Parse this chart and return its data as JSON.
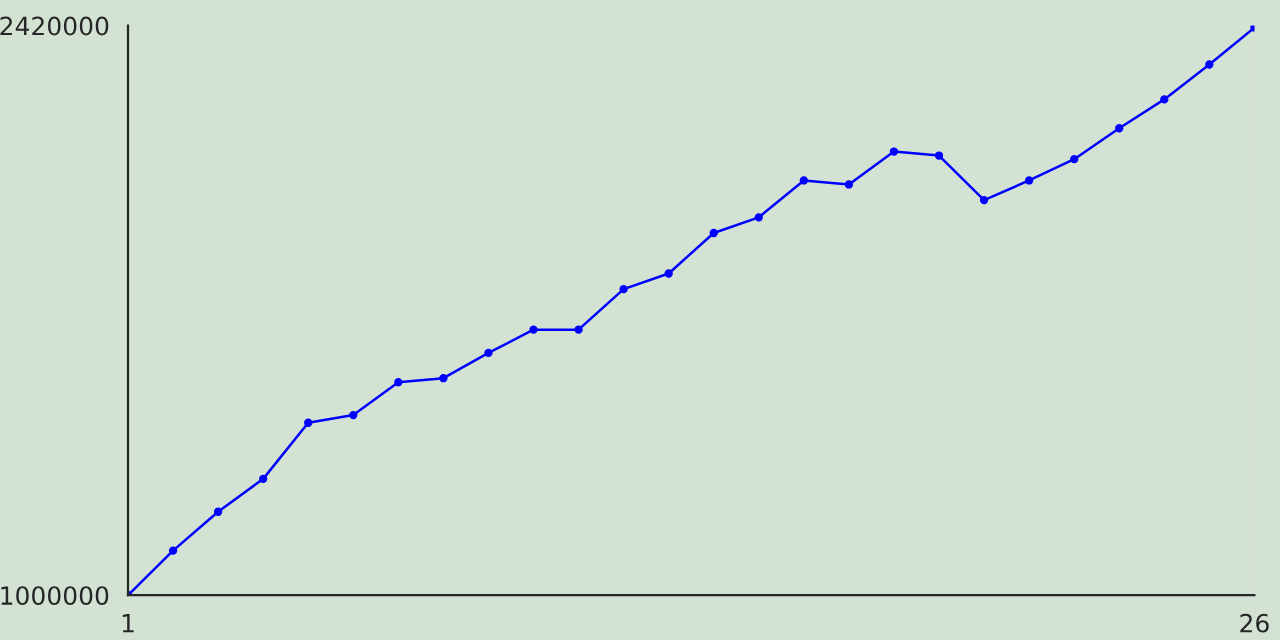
{
  "chart_data": {
    "type": "line",
    "x": [
      1,
      2,
      3,
      4,
      5,
      6,
      7,
      8,
      9,
      10,
      11,
      12,
      13,
      14,
      15,
      16,
      17,
      18,
      19,
      20,
      21,
      22,
      23,
      24,
      25,
      26
    ],
    "series": [
      {
        "color": "#0000ff",
        "values": [
          1000000,
          1111000,
          1208000,
          1290000,
          1430000,
          1449000,
          1531000,
          1541000,
          1604000,
          1662000,
          1662000,
          1763000,
          1802000,
          1903000,
          1942000,
          2034000,
          2024000,
          2106000,
          2096000,
          1985000,
          2034000,
          2087000,
          2164000,
          2236000,
          2323000,
          2415000
        ]
      }
    ],
    "xlim": [
      1,
      26
    ],
    "ylim": [
      1000000,
      2420000
    ],
    "xticks": [
      1,
      26
    ],
    "yticks": [
      1000000,
      2420000
    ],
    "marker": "circle",
    "line_style": "solid",
    "grid": false,
    "legend": false
  }
}
